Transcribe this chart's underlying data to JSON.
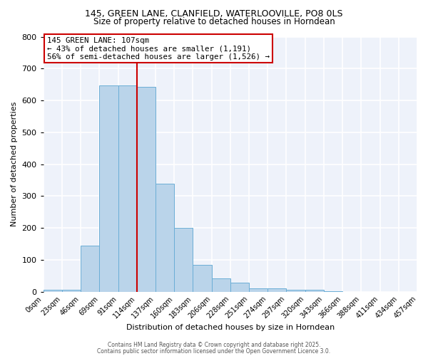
{
  "title_line1": "145, GREEN LANE, CLANFIELD, WATERLOOVILLE, PO8 0LS",
  "title_line2": "Size of property relative to detached houses in Horndean",
  "xlabel": "Distribution of detached houses by size in Horndean",
  "ylabel": "Number of detached properties",
  "bin_labels": [
    "0sqm",
    "23sqm",
    "46sqm",
    "69sqm",
    "91sqm",
    "114sqm",
    "137sqm",
    "160sqm",
    "183sqm",
    "206sqm",
    "228sqm",
    "251sqm",
    "274sqm",
    "297sqm",
    "320sqm",
    "343sqm",
    "366sqm",
    "388sqm",
    "411sqm",
    "434sqm",
    "457sqm"
  ],
  "bar_heights": [
    5,
    5,
    145,
    648,
    648,
    643,
    338,
    200,
    85,
    42,
    28,
    10,
    10,
    5,
    5,
    2,
    0,
    0,
    0,
    0
  ],
  "bar_color": "#bad4ea",
  "bar_edge_color": "#6baed6",
  "annotation_text": "145 GREEN LANE: 107sqm\n← 43% of detached houses are smaller (1,191)\n56% of semi-detached houses are larger (1,526) →",
  "vline_x": 5,
  "vline_color": "#cc0000",
  "annotation_box_color": "#cc0000",
  "ylim": [
    0,
    800
  ],
  "yticks": [
    0,
    100,
    200,
    300,
    400,
    500,
    600,
    700,
    800
  ],
  "background_color": "#eef2fa",
  "grid_color": "#ffffff",
  "footer1": "Contains HM Land Registry data © Crown copyright and database right 2025.",
  "footer2": "Contains public sector information licensed under the Open Government Licence 3.0."
}
